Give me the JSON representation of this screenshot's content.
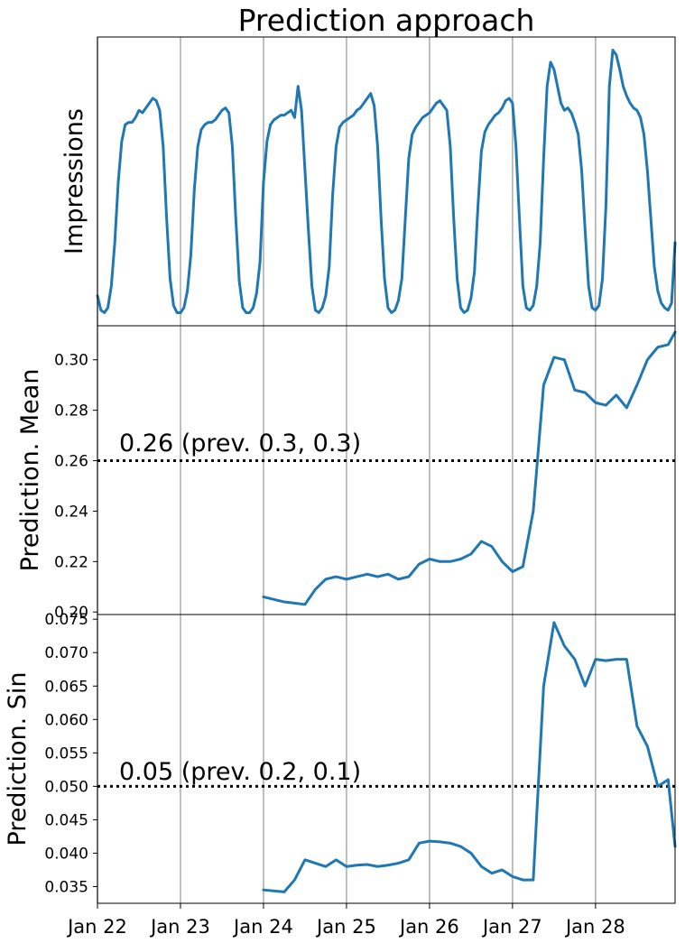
{
  "title": "Prediction approach",
  "x_axis": {
    "tick_labels": [
      "Jan 22",
      "Jan 23",
      "Jan 24",
      "Jan 25",
      "Jan 26",
      "Jan 27",
      "Jan 28"
    ],
    "start": "Jan 22",
    "end": "Jan 28 23:00"
  },
  "chart_data": [
    {
      "type": "line",
      "ylabel": "Impressions",
      "yticks_visible": false,
      "grid": "x-only",
      "series": [
        {
          "color": "#1f77b4",
          "x": [
            "Jan 22 00:00",
            "Jan 22 01:00",
            "Jan 22 02:00",
            "Jan 22 03:00",
            "Jan 22 04:00",
            "Jan 22 05:00",
            "Jan 22 06:00",
            "Jan 22 07:00",
            "Jan 22 08:00",
            "Jan 22 09:00",
            "Jan 22 10:00",
            "Jan 22 11:00",
            "Jan 22 12:00",
            "Jan 22 13:00",
            "Jan 22 14:00",
            "Jan 22 15:00",
            "Jan 22 16:00",
            "Jan 22 17:00",
            "Jan 22 18:00",
            "Jan 22 19:00",
            "Jan 22 20:00",
            "Jan 22 21:00",
            "Jan 22 22:00",
            "Jan 22 23:00",
            "Jan 23 00:00",
            "Jan 23 01:00",
            "Jan 23 02:00",
            "Jan 23 03:00",
            "Jan 23 04:00",
            "Jan 23 05:00",
            "Jan 23 06:00",
            "Jan 23 07:00",
            "Jan 23 08:00",
            "Jan 23 09:00",
            "Jan 23 10:00",
            "Jan 23 11:00",
            "Jan 23 12:00",
            "Jan 23 13:00",
            "Jan 23 14:00",
            "Jan 23 15:00",
            "Jan 23 16:00",
            "Jan 23 17:00",
            "Jan 23 18:00",
            "Jan 23 19:00",
            "Jan 23 20:00",
            "Jan 23 21:00",
            "Jan 23 22:00",
            "Jan 23 23:00",
            "Jan 24 00:00",
            "Jan 24 01:00",
            "Jan 24 02:00",
            "Jan 24 03:00",
            "Jan 24 04:00",
            "Jan 24 05:00",
            "Jan 24 06:00",
            "Jan 24 07:00",
            "Jan 24 08:00",
            "Jan 24 09:00",
            "Jan 24 10:00",
            "Jan 24 11:00",
            "Jan 24 12:00",
            "Jan 24 13:00",
            "Jan 24 14:00",
            "Jan 24 15:00",
            "Jan 24 16:00",
            "Jan 24 17:00",
            "Jan 24 18:00",
            "Jan 24 19:00",
            "Jan 24 20:00",
            "Jan 24 21:00",
            "Jan 24 22:00",
            "Jan 24 23:00",
            "Jan 25 00:00",
            "Jan 25 01:00",
            "Jan 25 02:00",
            "Jan 25 03:00",
            "Jan 25 04:00",
            "Jan 25 05:00",
            "Jan 25 06:00",
            "Jan 25 07:00",
            "Jan 25 08:00",
            "Jan 25 09:00",
            "Jan 25 10:00",
            "Jan 25 11:00",
            "Jan 25 12:00",
            "Jan 25 13:00",
            "Jan 25 14:00",
            "Jan 25 15:00",
            "Jan 25 16:00",
            "Jan 25 17:00",
            "Jan 25 18:00",
            "Jan 25 19:00",
            "Jan 25 20:00",
            "Jan 25 21:00",
            "Jan 25 22:00",
            "Jan 25 23:00",
            "Jan 26 00:00",
            "Jan 26 01:00",
            "Jan 26 02:00",
            "Jan 26 03:00",
            "Jan 26 04:00",
            "Jan 26 05:00",
            "Jan 26 06:00",
            "Jan 26 07:00",
            "Jan 26 08:00",
            "Jan 26 09:00",
            "Jan 26 10:00",
            "Jan 26 11:00",
            "Jan 26 12:00",
            "Jan 26 13:00",
            "Jan 26 14:00",
            "Jan 26 15:00",
            "Jan 26 16:00",
            "Jan 26 17:00",
            "Jan 26 18:00",
            "Jan 26 19:00",
            "Jan 26 20:00",
            "Jan 26 21:00",
            "Jan 26 22:00",
            "Jan 26 23:00",
            "Jan 27 00:00",
            "Jan 27 01:00",
            "Jan 27 02:00",
            "Jan 27 03:00",
            "Jan 27 04:00",
            "Jan 27 05:00",
            "Jan 27 06:00",
            "Jan 27 07:00",
            "Jan 27 08:00",
            "Jan 27 09:00",
            "Jan 27 10:00",
            "Jan 27 11:00",
            "Jan 27 12:00",
            "Jan 27 13:00",
            "Jan 27 14:00",
            "Jan 27 15:00",
            "Jan 27 16:00",
            "Jan 27 17:00",
            "Jan 27 18:00",
            "Jan 27 19:00",
            "Jan 27 20:00",
            "Jan 27 21:00",
            "Jan 27 22:00",
            "Jan 27 23:00",
            "Jan 28 00:00",
            "Jan 28 01:00",
            "Jan 28 02:00",
            "Jan 28 03:00",
            "Jan 28 04:00",
            "Jan 28 05:00",
            "Jan 28 06:00",
            "Jan 28 07:00",
            "Jan 28 08:00",
            "Jan 28 09:00",
            "Jan 28 10:00",
            "Jan 28 11:00",
            "Jan 28 12:00",
            "Jan 28 13:00",
            "Jan 28 14:00",
            "Jan 28 15:00",
            "Jan 28 16:00",
            "Jan 28 17:00",
            "Jan 28 18:00",
            "Jan 28 19:00",
            "Jan 28 20:00",
            "Jan 28 21:00",
            "Jan 28 22:00",
            "Jan 28 23:00"
          ],
          "y": [
            0.08,
            0.02,
            0.01,
            0.03,
            0.12,
            0.3,
            0.55,
            0.72,
            0.79,
            0.8,
            0.8,
            0.82,
            0.85,
            0.84,
            0.86,
            0.88,
            0.9,
            0.89,
            0.85,
            0.7,
            0.4,
            0.15,
            0.04,
            0.01,
            0.01,
            0.03,
            0.1,
            0.25,
            0.52,
            0.7,
            0.77,
            0.79,
            0.8,
            0.8,
            0.81,
            0.83,
            0.85,
            0.86,
            0.84,
            0.7,
            0.4,
            0.14,
            0.03,
            0.01,
            0.01,
            0.03,
            0.09,
            0.22,
            0.55,
            0.72,
            0.79,
            0.81,
            0.82,
            0.83,
            0.83,
            0.84,
            0.85,
            0.82,
            0.95,
            0.85,
            0.6,
            0.35,
            0.12,
            0.02,
            0.01,
            0.03,
            0.08,
            0.2,
            0.5,
            0.7,
            0.78,
            0.8,
            0.81,
            0.82,
            0.83,
            0.85,
            0.86,
            0.88,
            0.9,
            0.92,
            0.87,
            0.7,
            0.4,
            0.15,
            0.03,
            0.01,
            0.02,
            0.06,
            0.15,
            0.4,
            0.65,
            0.75,
            0.78,
            0.8,
            0.82,
            0.83,
            0.84,
            0.86,
            0.88,
            0.89,
            0.87,
            0.85,
            0.7,
            0.4,
            0.15,
            0.03,
            0.01,
            0.02,
            0.07,
            0.18,
            0.45,
            0.68,
            0.76,
            0.79,
            0.81,
            0.83,
            0.84,
            0.86,
            0.89,
            0.9,
            0.88,
            0.7,
            0.4,
            0.12,
            0.03,
            0.02,
            0.04,
            0.12,
            0.3,
            0.65,
            0.95,
            1.05,
            1.02,
            0.95,
            0.88,
            0.85,
            0.86,
            0.84,
            0.8,
            0.75,
            0.6,
            0.35,
            0.12,
            0.03,
            0.02,
            0.04,
            0.15,
            0.45,
            0.95,
            1.1,
            1.08,
            1.02,
            0.95,
            0.91,
            0.88,
            0.86,
            0.85,
            0.82,
            0.75,
            0.6,
            0.4,
            0.2,
            0.1,
            0.05,
            0.03,
            0.02,
            0.05,
            0.3
          ]
        }
      ]
    },
    {
      "type": "line",
      "ylabel": "Prediction. Mean",
      "ylim": [
        0.199,
        0.3135
      ],
      "yticks": [
        "0.20",
        "0.22",
        "0.24",
        "0.26",
        "0.28",
        "0.30"
      ],
      "ytick_values": [
        0.2,
        0.22,
        0.24,
        0.26,
        0.28,
        0.3
      ],
      "grid": "x-only",
      "reference_line": {
        "y": 0.26,
        "style": "dotted",
        "color": "#000000"
      },
      "annotation": "0.26 (prev. 0.3, 0.3)",
      "series": [
        {
          "color": "#1f77b4",
          "x": [
            "Jan 24 00:00",
            "Jan 24 06:00",
            "Jan 24 12:00",
            "Jan 24 15:00",
            "Jan 24 18:00",
            "Jan 24 21:00",
            "Jan 25 00:00",
            "Jan 25 03:00",
            "Jan 25 06:00",
            "Jan 25 09:00",
            "Jan 25 12:00",
            "Jan 25 15:00",
            "Jan 25 18:00",
            "Jan 25 21:00",
            "Jan 26 00:00",
            "Jan 26 03:00",
            "Jan 26 06:00",
            "Jan 26 09:00",
            "Jan 26 12:00",
            "Jan 26 15:00",
            "Jan 26 18:00",
            "Jan 26 21:00",
            "Jan 27 00:00",
            "Jan 27 03:00",
            "Jan 27 06:00",
            "Jan 27 09:00",
            "Jan 27 12:00",
            "Jan 27 15:00",
            "Jan 27 18:00",
            "Jan 27 21:00",
            "Jan 28 00:00",
            "Jan 28 03:00",
            "Jan 28 06:00",
            "Jan 28 09:00",
            "Jan 28 12:00",
            "Jan 28 15:00",
            "Jan 28 18:00",
            "Jan 28 21:00",
            "Jan 28 23:00"
          ],
          "y": [
            0.206,
            0.204,
            0.203,
            0.209,
            0.213,
            0.214,
            0.213,
            0.214,
            0.215,
            0.214,
            0.215,
            0.213,
            0.214,
            0.219,
            0.221,
            0.22,
            0.22,
            0.221,
            0.223,
            0.228,
            0.226,
            0.22,
            0.216,
            0.218,
            0.24,
            0.29,
            0.301,
            0.3,
            0.288,
            0.287,
            0.283,
            0.282,
            0.286,
            0.281,
            0.29,
            0.3,
            0.305,
            0.306,
            0.311
          ]
        }
      ]
    },
    {
      "type": "line",
      "ylabel": "Prediction. Sin",
      "ylim": [
        0.0325,
        0.0757
      ],
      "yticks": [
        "0.035",
        "0.040",
        "0.045",
        "0.050",
        "0.055",
        "0.060",
        "0.065",
        "0.070",
        "0.075"
      ],
      "ytick_values": [
        0.035,
        0.04,
        0.045,
        0.05,
        0.055,
        0.06,
        0.065,
        0.07,
        0.075
      ],
      "grid": "x-only",
      "reference_line": {
        "y": 0.05,
        "style": "dotted",
        "color": "#000000"
      },
      "annotation": "0.05 (prev. 0.2, 0.1)",
      "series": [
        {
          "color": "#1f77b4",
          "x": [
            "Jan 24 00:00",
            "Jan 24 06:00",
            "Jan 24 09:00",
            "Jan 24 12:00",
            "Jan 24 15:00",
            "Jan 24 18:00",
            "Jan 24 21:00",
            "Jan 25 00:00",
            "Jan 25 03:00",
            "Jan 25 06:00",
            "Jan 25 09:00",
            "Jan 25 12:00",
            "Jan 25 15:00",
            "Jan 25 18:00",
            "Jan 25 21:00",
            "Jan 26 00:00",
            "Jan 26 03:00",
            "Jan 26 06:00",
            "Jan 26 09:00",
            "Jan 26 12:00",
            "Jan 26 15:00",
            "Jan 26 18:00",
            "Jan 26 21:00",
            "Jan 27 00:00",
            "Jan 27 03:00",
            "Jan 27 06:00",
            "Jan 27 09:00",
            "Jan 27 12:00",
            "Jan 27 15:00",
            "Jan 27 18:00",
            "Jan 27 21:00",
            "Jan 28 00:00",
            "Jan 28 03:00",
            "Jan 28 06:00",
            "Jan 28 09:00",
            "Jan 28 12:00",
            "Jan 28 15:00",
            "Jan 28 18:00",
            "Jan 28 21:00",
            "Jan 28 23:00"
          ],
          "y": [
            0.0345,
            0.0342,
            0.036,
            0.039,
            0.0385,
            0.038,
            0.039,
            0.038,
            0.0382,
            0.0383,
            0.038,
            0.0382,
            0.0385,
            0.039,
            0.0415,
            0.0418,
            0.0417,
            0.0415,
            0.041,
            0.04,
            0.038,
            0.037,
            0.0375,
            0.0365,
            0.036,
            0.036,
            0.065,
            0.0745,
            0.071,
            0.069,
            0.065,
            0.069,
            0.0688,
            0.069,
            0.069,
            0.059,
            0.056,
            0.05,
            0.051,
            0.041
          ]
        }
      ]
    }
  ]
}
